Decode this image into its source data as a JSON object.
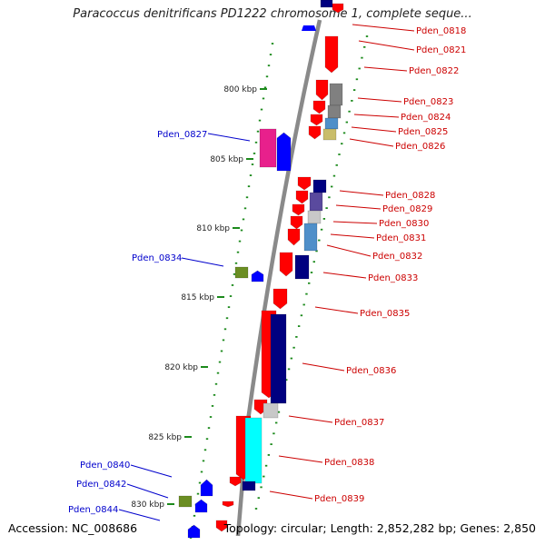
{
  "title": "Paracoccus denitrificans PD1222 chromosome 1, complete seque...",
  "footer": {
    "accession": "Accession: NC_008686",
    "topology": "Topology: circular; Length: 2,852,282 bp; Genes: 2,850"
  },
  "colors": {
    "backbone": "#8a8a8a",
    "tick": "#1c8a1c",
    "label_right": "#cc0000",
    "label_left": "#0000cc",
    "red": "#ff0000",
    "blue": "#0000ff",
    "navy": "#000080",
    "purple": "#5a4a9e",
    "gray": "#808080",
    "lightgray": "#c8c8c8",
    "steelblue": "#4f8fc9",
    "khaki": "#c9bd6a",
    "magenta": "#e8208c",
    "olive": "#6b8e23",
    "cyan": "#00ffff"
  },
  "scale_labels": [
    "800 kbp",
    "805 kbp",
    "810 kbp",
    "815 kbp",
    "820 kbp",
    "825 kbp",
    "830 kbp"
  ],
  "right_labels": [
    "Pden_0818",
    "Pden_0821",
    "Pden_0822",
    "Pden_0823",
    "Pden_0824",
    "Pden_0825",
    "Pden_0826",
    "Pden_0828",
    "Pden_0829",
    "Pden_0830",
    "Pden_0831",
    "Pden_0832",
    "Pden_0833",
    "Pden_0835",
    "Pden_0836",
    "Pden_0837",
    "Pden_0838",
    "Pden_0839"
  ],
  "left_labels": [
    "Pden_0827",
    "Pden_0834",
    "Pden_0840",
    "Pden_0842",
    "Pden_0844"
  ]
}
